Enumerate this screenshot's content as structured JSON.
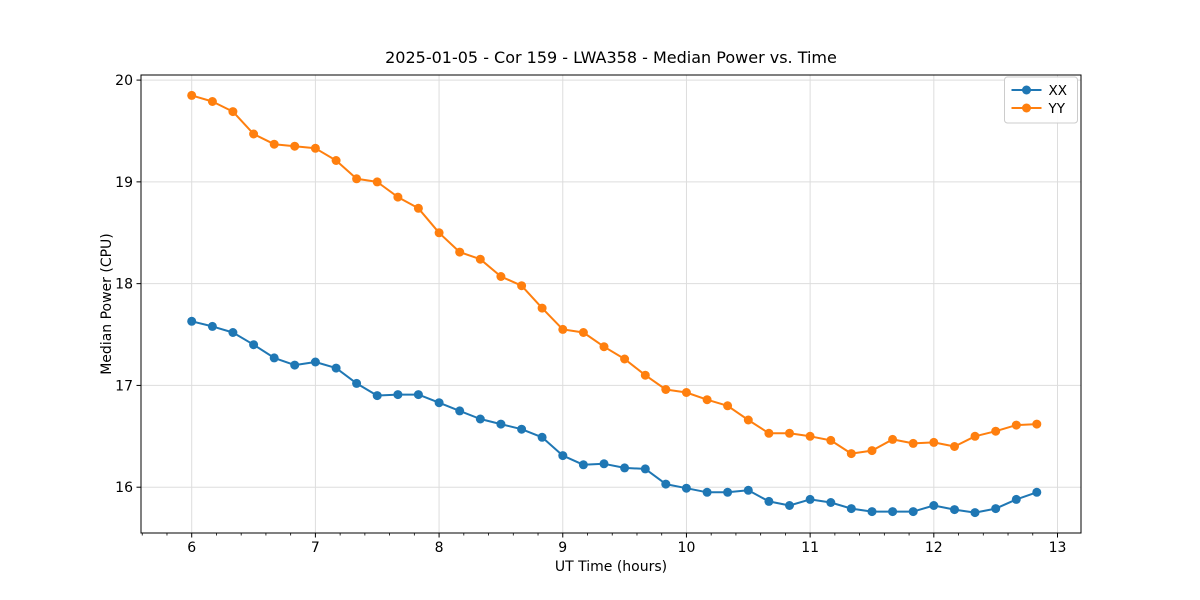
{
  "chart_data": {
    "type": "line",
    "title": "2025-01-05 - Cor 159 - LWA358 - Median Power vs. Time",
    "xlabel": "UT Time (hours)",
    "ylabel": "Median Power (CPU)",
    "xlim": [
      5.59,
      13.19
    ],
    "ylim": [
      15.55,
      20.05
    ],
    "xticks": [
      6,
      7,
      8,
      9,
      10,
      11,
      12,
      13
    ],
    "yticks": [
      16,
      17,
      18,
      19,
      20
    ],
    "minor_xtick_step": 0.2,
    "grid": true,
    "legend_position": "upper right",
    "background_color": "#ffffff",
    "grid_color": "#dddddd",
    "axis_color": "#000000",
    "legend_border_color": "#cccccc",
    "x": [
      6.0,
      6.167,
      6.333,
      6.5,
      6.667,
      6.833,
      7.0,
      7.167,
      7.333,
      7.5,
      7.667,
      7.833,
      8.0,
      8.167,
      8.333,
      8.5,
      8.667,
      8.833,
      9.0,
      9.167,
      9.333,
      9.5,
      9.667,
      9.833,
      10.0,
      10.167,
      10.333,
      10.5,
      10.667,
      10.833,
      11.0,
      11.167,
      11.333,
      11.5,
      11.667,
      11.833,
      12.0,
      12.167,
      12.333,
      12.5,
      12.667,
      12.833
    ],
    "series": [
      {
        "name": "XX",
        "color": "#1f77b4",
        "marker": "circle",
        "values": [
          17.63,
          17.58,
          17.52,
          17.4,
          17.27,
          17.2,
          17.23,
          17.17,
          17.02,
          16.9,
          16.91,
          16.91,
          16.83,
          16.75,
          16.67,
          16.62,
          16.57,
          16.49,
          16.31,
          16.22,
          16.23,
          16.19,
          16.18,
          16.03,
          15.99,
          15.95,
          15.95,
          15.97,
          15.86,
          15.82,
          15.88,
          15.85,
          15.79,
          15.76,
          15.76,
          15.76,
          15.82,
          15.78,
          15.75,
          15.79,
          15.88,
          15.95
        ]
      },
      {
        "name": "YY",
        "color": "#ff7f0e",
        "marker": "circle",
        "values": [
          19.85,
          19.79,
          19.69,
          19.47,
          19.37,
          19.35,
          19.33,
          19.21,
          19.03,
          19.0,
          18.85,
          18.74,
          18.5,
          18.31,
          18.24,
          18.07,
          17.98,
          17.76,
          17.55,
          17.52,
          17.38,
          17.26,
          17.1,
          16.96,
          16.93,
          16.86,
          16.8,
          16.66,
          16.53,
          16.53,
          16.5,
          16.46,
          16.33,
          16.36,
          16.47,
          16.43,
          16.44,
          16.4,
          16.5,
          16.55,
          16.61,
          16.62
        ]
      }
    ]
  }
}
